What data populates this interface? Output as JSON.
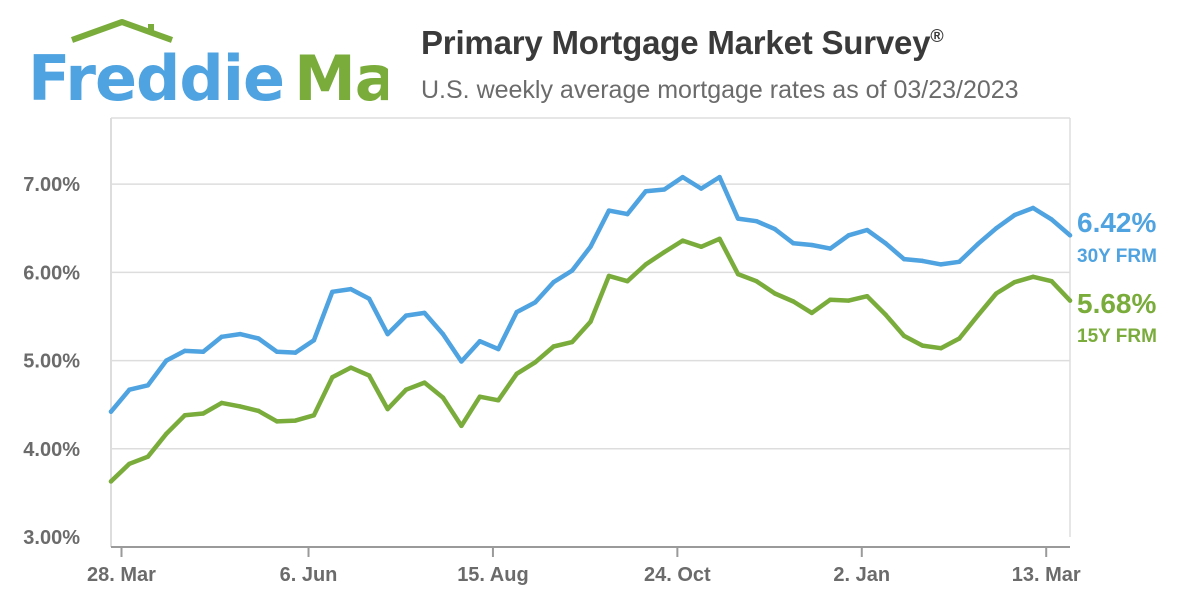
{
  "brand": {
    "logo": "Freddie Mac",
    "logo_word1": "Freddie",
    "logo_word2": "Mac"
  },
  "colors": {
    "blue": "#4ea3e0",
    "green": "#7aac3c",
    "grid": "#dddddd",
    "axis": "#9a9a9a",
    "text": "#6b6b6b"
  },
  "header": {
    "title": "Primary Mortgage Market Survey",
    "title_mark": "®",
    "subtitle": "U.S. weekly average mortgage rates as of 03/23/2023"
  },
  "chart_data": {
    "type": "line",
    "title": "Primary Mortgage Market Survey®",
    "subtitle": "U.S. weekly average mortgage rates as of 03/23/2023",
    "x": [
      "2022-03-24",
      "2022-03-31",
      "2022-04-07",
      "2022-04-14",
      "2022-04-21",
      "2022-04-28",
      "2022-05-05",
      "2022-05-12",
      "2022-05-19",
      "2022-05-26",
      "2022-06-02",
      "2022-06-09",
      "2022-06-16",
      "2022-06-23",
      "2022-06-30",
      "2022-07-07",
      "2022-07-14",
      "2022-07-21",
      "2022-07-28",
      "2022-08-04",
      "2022-08-11",
      "2022-08-18",
      "2022-08-25",
      "2022-09-01",
      "2022-09-08",
      "2022-09-15",
      "2022-09-22",
      "2022-09-29",
      "2022-10-06",
      "2022-10-13",
      "2022-10-20",
      "2022-10-27",
      "2022-11-03",
      "2022-11-10",
      "2022-11-17",
      "2022-11-23",
      "2022-12-01",
      "2022-12-08",
      "2022-12-15",
      "2022-12-22",
      "2022-12-29",
      "2023-01-05",
      "2023-01-12",
      "2023-01-19",
      "2023-01-26",
      "2023-02-02",
      "2023-02-09",
      "2023-02-16",
      "2023-02-23",
      "2023-03-02",
      "2023-03-09",
      "2023-03-16",
      "2023-03-23"
    ],
    "series": [
      {
        "name": "30Y FRM",
        "color": "#4ea3e0",
        "values": [
          4.42,
          4.67,
          4.72,
          5.0,
          5.11,
          5.1,
          5.27,
          5.3,
          5.25,
          5.1,
          5.09,
          5.23,
          5.78,
          5.81,
          5.7,
          5.3,
          5.51,
          5.54,
          5.3,
          4.99,
          5.22,
          5.13,
          5.55,
          5.66,
          5.89,
          6.02,
          6.29,
          6.7,
          6.66,
          6.92,
          6.94,
          7.08,
          6.95,
          7.08,
          6.61,
          6.58,
          6.49,
          6.33,
          6.31,
          6.27,
          6.42,
          6.48,
          6.33,
          6.15,
          6.13,
          6.09,
          6.12,
          6.32,
          6.5,
          6.65,
          6.73,
          6.6,
          6.42
        ]
      },
      {
        "name": "15Y FRM",
        "color": "#7aac3c",
        "values": [
          3.63,
          3.83,
          3.91,
          4.17,
          4.38,
          4.4,
          4.52,
          4.48,
          4.43,
          4.31,
          4.32,
          4.38,
          4.81,
          4.92,
          4.83,
          4.45,
          4.67,
          4.75,
          4.58,
          4.26,
          4.59,
          4.55,
          4.85,
          4.98,
          5.16,
          5.21,
          5.44,
          5.96,
          5.9,
          6.09,
          6.23,
          6.36,
          6.29,
          6.38,
          5.98,
          5.9,
          5.76,
          5.67,
          5.54,
          5.69,
          5.68,
          5.73,
          5.52,
          5.28,
          5.17,
          5.14,
          5.25,
          5.51,
          5.76,
          5.89,
          5.95,
          5.9,
          5.68
        ]
      }
    ],
    "ylim": [
      3.0,
      7.75
    ],
    "yticks": [
      "3.00%",
      "4.00%",
      "5.00%",
      "6.00%",
      "7.00%"
    ],
    "ytick_values": [
      3,
      4,
      5,
      6,
      7
    ],
    "xticks": [
      {
        "label": "28. Mar",
        "index": 0.57
      },
      {
        "label": "6. Jun",
        "index": 10.71
      },
      {
        "label": "15. Aug",
        "index": 20.71
      },
      {
        "label": "24. Oct",
        "index": 30.71
      },
      {
        "label": "2. Jan",
        "index": 40.71
      },
      {
        "label": "13. Mar",
        "index": 50.71
      }
    ],
    "end_labels": [
      {
        "value": "6.42%",
        "name": "30Y FRM",
        "color": "#4ea3e0"
      },
      {
        "value": "5.68%",
        "name": "15Y FRM",
        "color": "#7aac3c"
      }
    ],
    "grid": true,
    "legend": "right"
  }
}
